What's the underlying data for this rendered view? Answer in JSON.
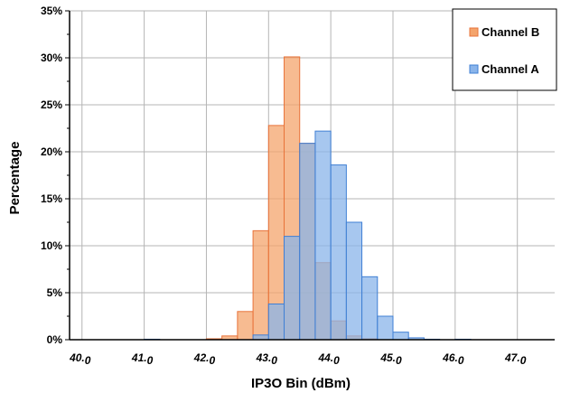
{
  "chart_data": {
    "type": "bar",
    "title": "",
    "xlabel": "IP3O Bin (dBm)",
    "ylabel": "Percentage",
    "ylim": [
      0,
      35
    ],
    "yticks": [
      "0%",
      "5%",
      "10%",
      "15%",
      "20%",
      "25%",
      "30%",
      "35%"
    ],
    "xlim": [
      39.8,
      47.6
    ],
    "xticks": [
      "40.0",
      "41.0",
      "42.0",
      "43.0",
      "44.0",
      "45.0",
      "46.0",
      "47.0"
    ],
    "bin_width": 0.25,
    "grid": true,
    "legend_position": "top-right",
    "series": [
      {
        "name": "Channel B",
        "color": "#f4a46c",
        "bins": [
          {
            "x": 42.0,
            "y": 0.1
          },
          {
            "x": 42.25,
            "y": 0.4
          },
          {
            "x": 42.5,
            "y": 3.0
          },
          {
            "x": 42.75,
            "y": 11.6
          },
          {
            "x": 43.0,
            "y": 22.8
          },
          {
            "x": 43.25,
            "y": 30.1
          },
          {
            "x": 43.5,
            "y": 20.9
          },
          {
            "x": 43.75,
            "y": 8.2
          },
          {
            "x": 44.0,
            "y": 2.0
          },
          {
            "x": 44.25,
            "y": 0.4
          },
          {
            "x": 44.5,
            "y": 0.1
          }
        ]
      },
      {
        "name": "Channel A",
        "color": "#8ab4ea",
        "bins": [
          {
            "x": 41.0,
            "y": 0.05
          },
          {
            "x": 42.75,
            "y": 0.5
          },
          {
            "x": 43.0,
            "y": 3.8
          },
          {
            "x": 43.25,
            "y": 11.0
          },
          {
            "x": 43.5,
            "y": 20.9
          },
          {
            "x": 43.75,
            "y": 22.2
          },
          {
            "x": 44.0,
            "y": 18.6
          },
          {
            "x": 44.25,
            "y": 12.5
          },
          {
            "x": 44.5,
            "y": 6.7
          },
          {
            "x": 44.75,
            "y": 2.5
          },
          {
            "x": 45.0,
            "y": 0.8
          },
          {
            "x": 45.25,
            "y": 0.2
          },
          {
            "x": 45.5,
            "y": 0.05
          },
          {
            "x": 46.0,
            "y": 0.05
          }
        ]
      }
    ]
  }
}
